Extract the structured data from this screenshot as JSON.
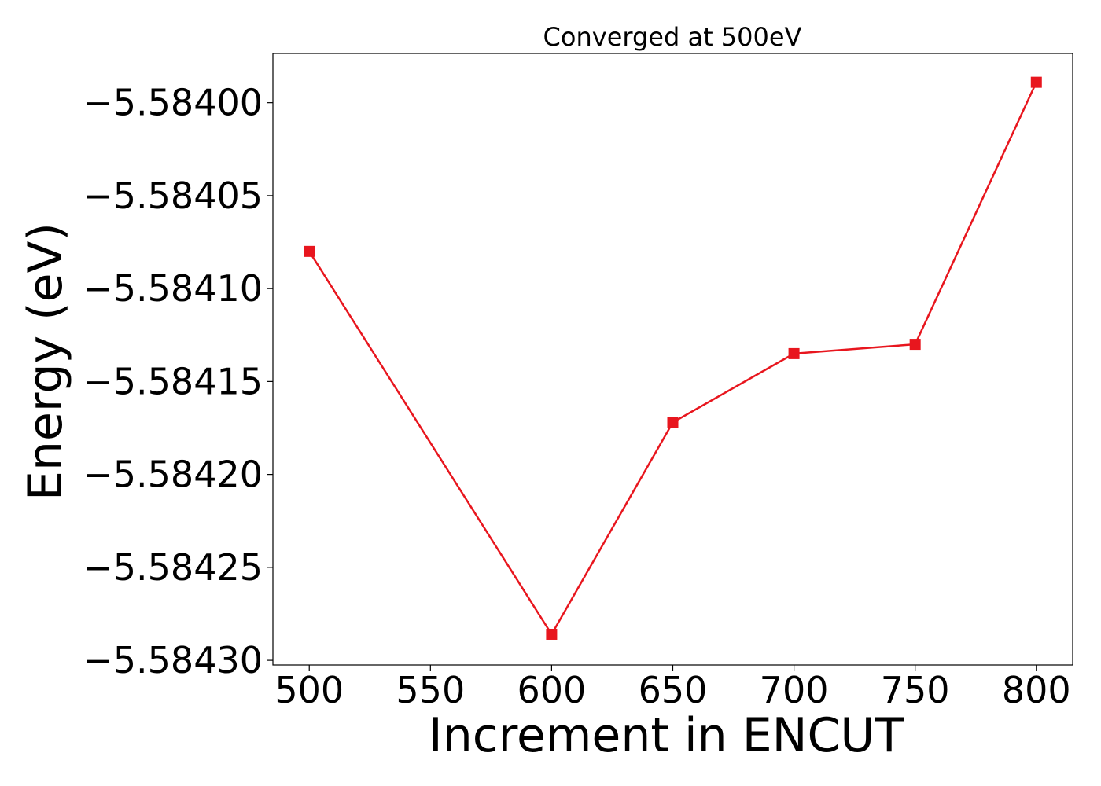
{
  "chart_data": {
    "type": "line",
    "title": "Converged at 500eV",
    "xlabel": "Increment in ENCUT",
    "ylabel": "Energy (eV)",
    "x": [
      500,
      600,
      650,
      700,
      750,
      800
    ],
    "series": [
      {
        "values": [
          -5.58408,
          -5.584286,
          -5.584172,
          -5.584135,
          -5.58413,
          -5.583989
        ],
        "color": "#e8161e",
        "marker": "square"
      }
    ],
    "xlim": [
      485,
      815
    ],
    "ylim": [
      -5.5843025,
      -5.5839735
    ],
    "xticks": [
      500,
      550,
      600,
      650,
      700,
      750,
      800
    ],
    "xtick_labels": [
      "500",
      "550",
      "600",
      "650",
      "700",
      "750",
      "800"
    ],
    "yticks": [
      -5.5843,
      -5.58425,
      -5.5842,
      -5.58415,
      -5.5841,
      -5.58405,
      -5.584
    ],
    "ytick_labels": [
      "−5.58430",
      "−5.58425",
      "−5.58420",
      "−5.58415",
      "−5.58410",
      "−5.58405",
      "−5.58400"
    ],
    "grid": false,
    "legend": "none"
  }
}
